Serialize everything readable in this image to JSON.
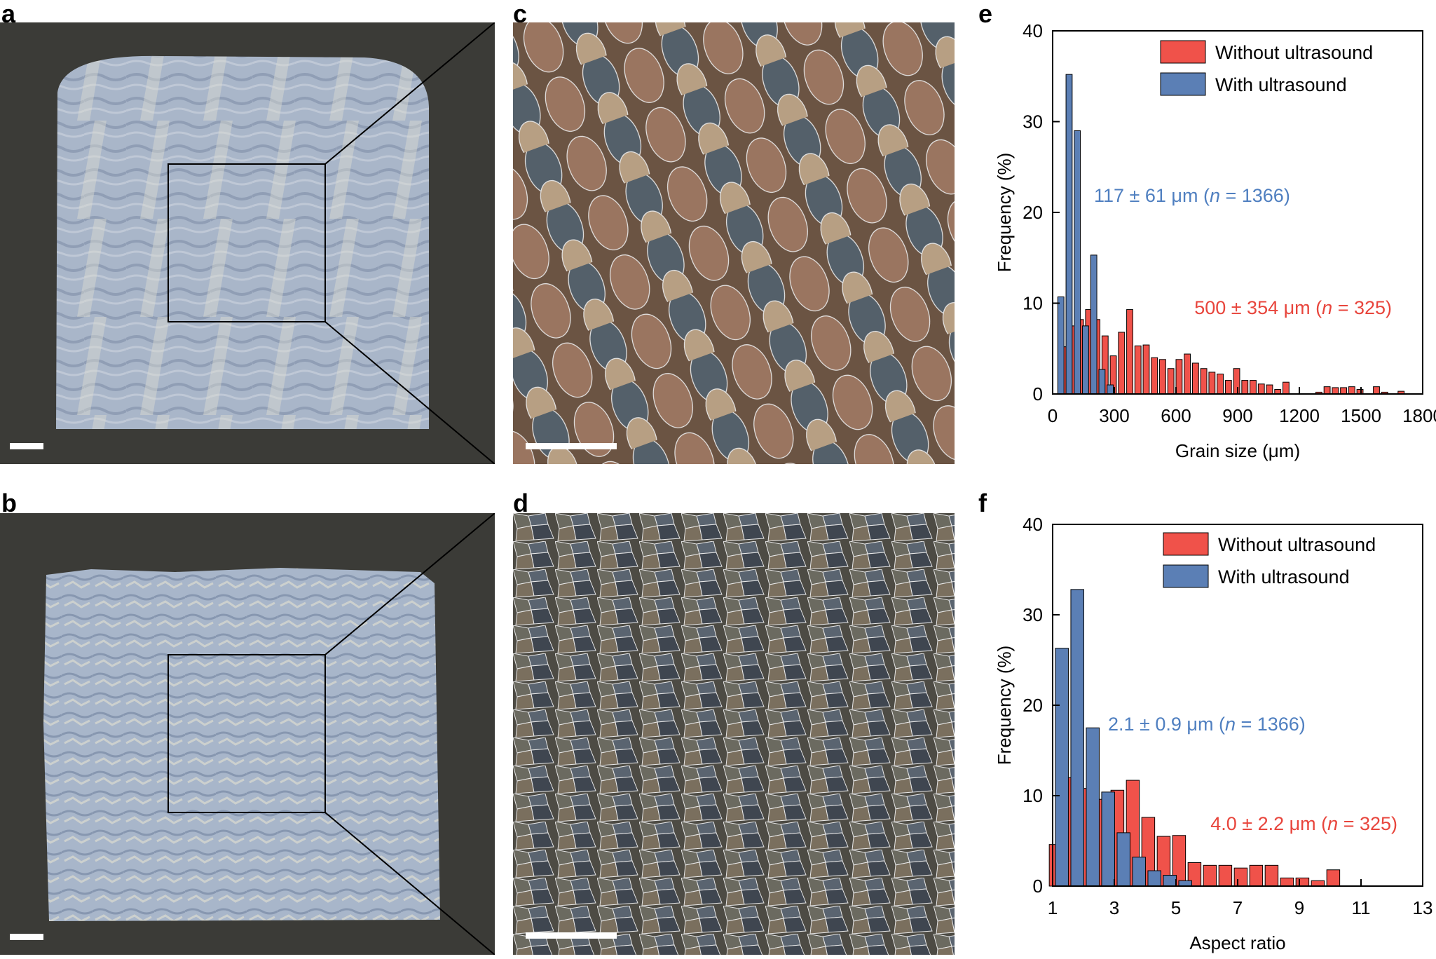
{
  "panels": {
    "a": "a",
    "b": "b",
    "c": "c",
    "d": "d",
    "e": "e",
    "f": "f"
  },
  "colors": {
    "background_dark": "#3a3a36",
    "deposit_blue": "#9eadc3",
    "without_ultrasound": "#f0524a",
    "with_ultrasound": "#5b7fb5",
    "annot_blue": "#4f7fc0",
    "annot_red": "#e8453c"
  },
  "chart_data": [
    {
      "type": "bar",
      "panel": "e",
      "xlabel": "Grain size (μm)",
      "ylabel": "Frequency (%)",
      "xlim": [
        0,
        1800
      ],
      "ylim": [
        0,
        40
      ],
      "xticks": [
        "0",
        "300",
        "600",
        "900",
        "1200",
        "1500",
        "1800"
      ],
      "yticks": [
        "0",
        "10",
        "20",
        "30",
        "40"
      ],
      "legend_position": "top-right",
      "series": [
        {
          "name": "Without ultrasound",
          "x": [
            55,
            95,
            135,
            175,
            215,
            255,
            295,
            335,
            375,
            415,
            455,
            495,
            535,
            575,
            615,
            655,
            695,
            735,
            775,
            815,
            855,
            895,
            935,
            975,
            1015,
            1055,
            1095,
            1135,
            1175,
            1215,
            1295,
            1335,
            1375,
            1415,
            1455,
            1495,
            1535,
            1575,
            1615,
            1695
          ],
          "values": [
            5.2,
            7.5,
            8.2,
            9.3,
            8.2,
            6.4,
            4.2,
            6.8,
            9.3,
            5.3,
            5.4,
            4.0,
            3.8,
            2.8,
            3.8,
            4.4,
            3.4,
            2.8,
            2.4,
            2.2,
            1.5,
            2.8,
            1.5,
            1.5,
            1.1,
            1.0,
            0.5,
            1.3,
            0.0,
            0.0,
            0.2,
            0.8,
            0.7,
            0.7,
            0.8,
            0.5,
            0.0,
            0.8,
            0.2,
            0.3
          ]
        },
        {
          "name": "With ultrasound",
          "x": [
            40,
            80,
            120,
            160,
            200,
            240,
            280
          ],
          "values": [
            10.7,
            35.2,
            29.0,
            7.5,
            15.3,
            2.7,
            1.0
          ]
        }
      ],
      "annotations": [
        {
          "text": "117 ± 61 μm (n = 1366)",
          "series": "With ultrasound"
        },
        {
          "text": "500 ± 354 μm (n = 325)",
          "series": "Without ultrasound"
        }
      ]
    },
    {
      "type": "bar",
      "panel": "f",
      "xlabel": "Aspect ratio",
      "ylabel": "Frequency (%)",
      "xlim": [
        1,
        13
      ],
      "ylim": [
        0,
        40
      ],
      "xticks": [
        "1",
        "3",
        "5",
        "7",
        "9",
        "11",
        "13"
      ],
      "yticks": [
        "0",
        "10",
        "20",
        "30",
        "40"
      ],
      "legend_position": "top-right",
      "series": [
        {
          "name": "Without ultrasound",
          "x": [
            1.1,
            1.6,
            2.1,
            2.6,
            3.1,
            3.6,
            4.1,
            4.6,
            5.1,
            5.6,
            6.1,
            6.6,
            7.1,
            7.6,
            8.1,
            8.6,
            9.1,
            9.6,
            10.1
          ],
          "values": [
            4.6,
            12.0,
            10.8,
            9.6,
            10.6,
            11.7,
            7.6,
            5.5,
            5.6,
            2.6,
            2.3,
            2.3,
            2.0,
            2.3,
            2.3,
            0.9,
            0.9,
            0.6,
            1.8
          ]
        },
        {
          "name": "With ultrasound",
          "x": [
            1.3,
            1.8,
            2.3,
            2.8,
            3.3,
            3.8,
            4.3,
            4.8,
            5.3
          ],
          "values": [
            26.3,
            32.8,
            17.5,
            10.4,
            5.9,
            3.2,
            1.7,
            1.2,
            0.6
          ]
        }
      ],
      "annotations": [
        {
          "text": "2.1 ± 0.9 μm (n = 1366)",
          "series": "With ultrasound"
        },
        {
          "text": "4.0 ± 2.2 μm (n = 325)",
          "series": "Without ultrasound"
        }
      ]
    }
  ]
}
